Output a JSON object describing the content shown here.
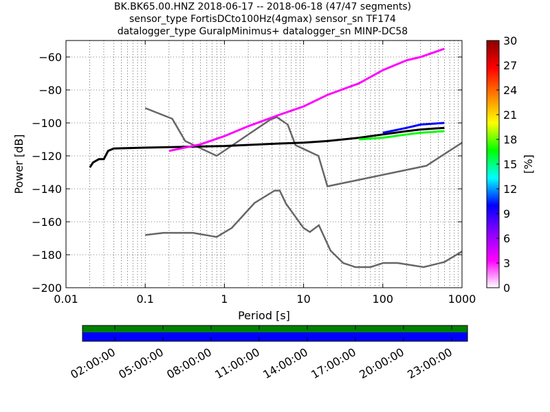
{
  "title_lines": [
    "BK.BK65.00.HNZ   2018-06-17 -- 2018-06-18  (47/47 segments)",
    "sensor_type FortisDCto100Hz(4gmax) sensor_sn TF174",
    "datalogger_type GuralpMinimus+ datalogger_sn MINP-DC58"
  ],
  "chart_data": {
    "type": "heatmap",
    "xlabel": "Period [s]",
    "ylabel": "Power [dB]",
    "x_scale": "log",
    "xlim": [
      0.01,
      1000
    ],
    "ylim": [
      -200,
      -50
    ],
    "x_ticks": [
      0.01,
      0.1,
      1,
      10,
      100,
      1000
    ],
    "x_tick_labels": [
      "0.01",
      "0.1",
      "1",
      "10",
      "100",
      "1000"
    ],
    "y_ticks": [
      -200,
      -180,
      -160,
      -140,
      -120,
      -100,
      -80,
      -60
    ],
    "y_tick_labels": [
      "−200",
      "−180",
      "−160",
      "−140",
      "−120",
      "−100",
      "−80",
      "−60"
    ],
    "grid": true,
    "colorbar": {
      "label": "[%]",
      "range": [
        0,
        30
      ],
      "ticks": [
        0,
        3,
        6,
        9,
        12,
        15,
        18,
        21,
        24,
        27,
        30
      ],
      "tick_labels": [
        "0",
        "3",
        "6",
        "9",
        "12",
        "15",
        "18",
        "21",
        "24",
        "27",
        "30"
      ],
      "colormap": [
        "#ffffff",
        "#ff00ff",
        "#8a00ff",
        "#0000ff",
        "#00ffff",
        "#00ff00",
        "#ffff00",
        "#ff8000",
        "#ff0000",
        "#8b0000"
      ]
    },
    "noise_models": [
      {
        "name": "NHNM",
        "color": "#666666",
        "points": [
          [
            0.1,
            -91
          ],
          [
            0.22,
            -97.5
          ],
          [
            0.32,
            -111
          ],
          [
            0.8,
            -120
          ],
          [
            3.8,
            -98
          ],
          [
            4.6,
            -96.5
          ],
          [
            6.3,
            -101
          ],
          [
            7.9,
            -113.5
          ],
          [
            15.4,
            -120
          ],
          [
            20,
            -138.5
          ],
          [
            354.8,
            -126
          ],
          [
            1000,
            -112
          ]
        ]
      },
      {
        "name": "NLNM",
        "color": "#666666",
        "points": [
          [
            0.1,
            -168
          ],
          [
            0.17,
            -166.7
          ],
          [
            0.4,
            -166.7
          ],
          [
            0.8,
            -169.2
          ],
          [
            1.24,
            -163.7
          ],
          [
            2.4,
            -148.6
          ],
          [
            4.3,
            -141.1
          ],
          [
            5,
            -141.1
          ],
          [
            6,
            -149
          ],
          [
            10,
            -163.8
          ],
          [
            12,
            -166.2
          ],
          [
            15.6,
            -162.1
          ],
          [
            21.9,
            -177.5
          ],
          [
            31.6,
            -185
          ],
          [
            45,
            -187.5
          ],
          [
            70,
            -187.5
          ],
          [
            101,
            -185
          ],
          [
            154,
            -185
          ],
          [
            328,
            -187.5
          ],
          [
            600,
            -184.4
          ],
          [
            1000,
            -178
          ]
        ]
      }
    ],
    "psd_bands": [
      {
        "name": "median_trend",
        "color": "#000000",
        "points": [
          [
            0.02,
            -127
          ],
          [
            0.022,
            -124
          ],
          [
            0.026,
            -122
          ],
          [
            0.03,
            -122
          ],
          [
            0.034,
            -117
          ],
          [
            0.04,
            -115.5
          ],
          [
            0.1,
            -115
          ],
          [
            1,
            -114
          ],
          [
            5,
            -112.5
          ],
          [
            10,
            -112
          ],
          [
            20,
            -111
          ],
          [
            50,
            -109
          ],
          [
            100,
            -107
          ],
          [
            200,
            -105
          ],
          [
            300,
            -104
          ],
          [
            600,
            -103
          ]
        ]
      },
      {
        "name": "spread_high",
        "color": "#0000ff",
        "points": [
          [
            100,
            -106
          ],
          [
            200,
            -103
          ],
          [
            300,
            -101
          ],
          [
            600,
            -100
          ]
        ]
      },
      {
        "name": "spread_low",
        "color": "#00ff00",
        "points": [
          [
            50,
            -110
          ],
          [
            100,
            -109
          ],
          [
            200,
            -107
          ],
          [
            300,
            -106
          ],
          [
            600,
            -105
          ]
        ]
      },
      {
        "name": "outlier_segment",
        "color": "#ff00ff",
        "points": [
          [
            0.2,
            -117
          ],
          [
            0.5,
            -113
          ],
          [
            1,
            -108
          ],
          [
            2,
            -102
          ],
          [
            5,
            -95
          ],
          [
            10,
            -90
          ],
          [
            20,
            -83
          ],
          [
            50,
            -76
          ],
          [
            100,
            -68
          ],
          [
            200,
            -62
          ],
          [
            300,
            -60
          ],
          [
            600,
            -55
          ]
        ]
      }
    ]
  },
  "timeline": {
    "labels": [
      "02:00:00",
      "05:00:00",
      "08:00:00",
      "11:00:00",
      "14:00:00",
      "17:00:00",
      "20:00:00",
      "23:00:00"
    ],
    "bar_colors": {
      "top": "#008000",
      "bottom": "#0000ff"
    }
  }
}
